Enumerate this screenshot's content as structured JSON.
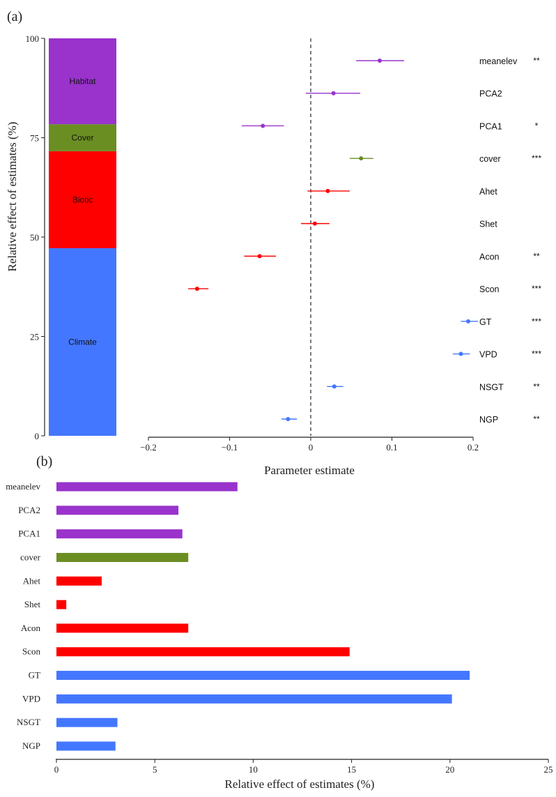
{
  "colors": {
    "Habitat": "#9933CC",
    "Cover": "#6B8E23",
    "Biotic": "#FF0000",
    "Climate": "#4477FF"
  },
  "chart_data": [
    {
      "panel_label": "(a)",
      "type": "stacked-bar+forest",
      "ylabel": "Relative effect of estimates (%)",
      "xlabel": "Parameter estimate",
      "ylim": [
        0,
        100
      ],
      "yticks": [
        "0",
        "25",
        "50",
        "75",
        "100"
      ],
      "xlim": [
        -0.2,
        0.2
      ],
      "xticks": [
        "−0.2",
        "−0.1",
        "0",
        "0.1",
        "0.2"
      ],
      "reference_line": 0,
      "stack": [
        {
          "group": "Climate",
          "start": 0,
          "end": 47.2
        },
        {
          "group": "Biotic",
          "start": 47.2,
          "end": 71.6
        },
        {
          "group": "Cover",
          "start": 71.6,
          "end": 78.4
        },
        {
          "group": "Habitat",
          "start": 78.4,
          "end": 100
        }
      ],
      "estimates": [
        {
          "name": "meanelev",
          "group": "Habitat",
          "estimate": 0.085,
          "low": 0.056,
          "high": 0.115,
          "sig": "**"
        },
        {
          "name": "PCA2",
          "group": "Habitat",
          "estimate": 0.028,
          "low": -0.006,
          "high": 0.061,
          "sig": ""
        },
        {
          "name": "PCA1",
          "group": "Habitat",
          "estimate": -0.059,
          "low": -0.085,
          "high": -0.033,
          "sig": "*"
        },
        {
          "name": "cover",
          "group": "Cover",
          "estimate": 0.062,
          "low": 0.048,
          "high": 0.077,
          "sig": "***"
        },
        {
          "name": "Ahet",
          "group": "Biotic",
          "estimate": 0.021,
          "low": -0.004,
          "high": 0.048,
          "sig": ""
        },
        {
          "name": "Shet",
          "group": "Biotic",
          "estimate": 0.005,
          "low": -0.012,
          "high": 0.023,
          "sig": ""
        },
        {
          "name": "Acon",
          "group": "Biotic",
          "estimate": -0.063,
          "low": -0.082,
          "high": -0.043,
          "sig": "**"
        },
        {
          "name": "Scon",
          "group": "Biotic",
          "estimate": -0.14,
          "low": -0.151,
          "high": -0.126,
          "sig": "***"
        },
        {
          "name": "GT",
          "group": "Climate",
          "estimate": 0.194,
          "low": 0.185,
          "high": 0.206,
          "sig": "***"
        },
        {
          "name": "VPD",
          "group": "Climate",
          "estimate": 0.185,
          "low": 0.175,
          "high": 0.196,
          "sig": "***"
        },
        {
          "name": "NSGT",
          "group": "Climate",
          "estimate": 0.029,
          "low": 0.02,
          "high": 0.04,
          "sig": "**"
        },
        {
          "name": "NGP",
          "group": "Climate",
          "estimate": -0.028,
          "low": -0.036,
          "high": -0.017,
          "sig": "**"
        }
      ]
    },
    {
      "panel_label": "(b)",
      "type": "bar",
      "orientation": "horizontal",
      "xlabel": "Relative effect of estimates (%)",
      "xlim": [
        0,
        25
      ],
      "xticks": [
        "0",
        "5",
        "10",
        "15",
        "20",
        "25"
      ],
      "categories": [
        "meanelev",
        "PCA2",
        "PCA1",
        "cover",
        "Ahet",
        "Shet",
        "Acon",
        "Scon",
        "GT",
        "VPD",
        "NSGT",
        "NGP"
      ],
      "groups": [
        "Habitat",
        "Habitat",
        "Habitat",
        "Cover",
        "Biotic",
        "Biotic",
        "Biotic",
        "Biotic",
        "Climate",
        "Climate",
        "Climate",
        "Climate"
      ],
      "values": [
        9.2,
        6.2,
        6.4,
        6.7,
        2.3,
        0.5,
        6.7,
        14.9,
        21.0,
        20.1,
        3.1,
        3.0
      ]
    }
  ]
}
